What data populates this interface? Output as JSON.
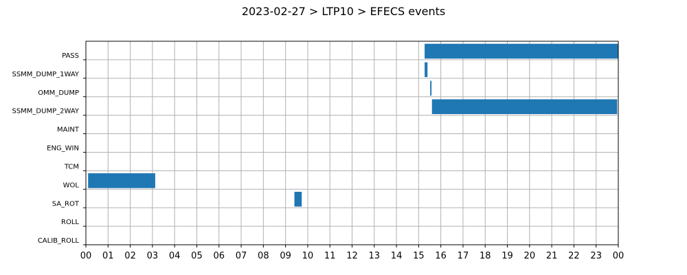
{
  "chart_data": {
    "type": "gantt",
    "title": "2023-02-27 > LTP10 > EFECS events",
    "xlabel": "",
    "ylabel": "",
    "x_unit": "hours",
    "xlim": [
      0,
      24
    ],
    "x_tick_labels": [
      "00",
      "01",
      "02",
      "03",
      "04",
      "05",
      "06",
      "07",
      "08",
      "09",
      "10",
      "11",
      "12",
      "13",
      "14",
      "15",
      "16",
      "17",
      "18",
      "19",
      "20",
      "21",
      "22",
      "23",
      "00"
    ],
    "categories": [
      "PASS",
      "SSMM_DUMP_1WAY",
      "OMM_DUMP",
      "SSMM_DUMP_2WAY",
      "MAINT",
      "ENG_WIN",
      "TCM",
      "WOL",
      "SA_ROT",
      "ROLL",
      "CALIB_ROLL"
    ],
    "grid": true,
    "bar_color": "#1f77b4",
    "events": [
      {
        "category": "PASS",
        "start": 15.27,
        "end": 24.0
      },
      {
        "category": "SSMM_DUMP_1WAY",
        "start": 15.27,
        "end": 15.4
      },
      {
        "category": "OMM_DUMP",
        "start": 15.52,
        "end": 15.58
      },
      {
        "category": "SSMM_DUMP_2WAY",
        "start": 15.6,
        "end": 23.95
      },
      {
        "category": "WOL",
        "start": 0.1,
        "end": 3.08
      },
      {
        "category": "WOL",
        "start": 3.08,
        "end": 3.12
      },
      {
        "category": "SA_ROT",
        "start": 9.4,
        "end": 9.73
      }
    ]
  }
}
